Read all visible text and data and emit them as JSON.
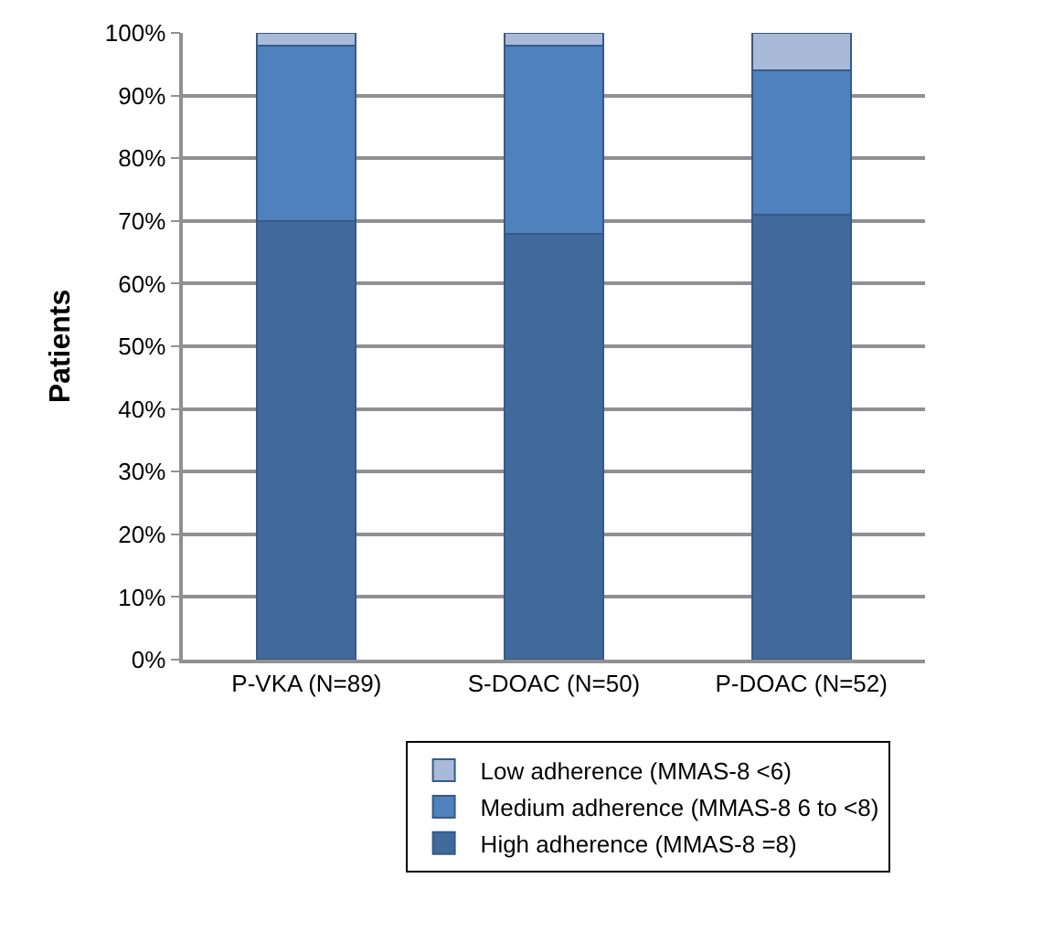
{
  "chart_data": {
    "type": "bar",
    "stacked": true,
    "ylabel": "Patients",
    "categories": [
      "P-VKA (N=89)",
      "S-DOAC (N=50)",
      "P-DOAC (N=52)"
    ],
    "series": [
      {
        "name": "High adherence (MMAS-8 =8)",
        "color": "#41699b",
        "values": [
          70,
          68,
          71
        ]
      },
      {
        "name": "Medium adherence (MMAS-8 6 to <8)",
        "color": "#4f81bd",
        "values": [
          28,
          30,
          23
        ]
      },
      {
        "name": "Low adherence (MMAS-8 <6)",
        "color": "#a9b9d8",
        "values": [
          2,
          2,
          6
        ]
      }
    ],
    "ylim": [
      0,
      100
    ],
    "yticks": [
      {
        "value": 0,
        "label": "0%"
      },
      {
        "value": 10,
        "label": "10%"
      },
      {
        "value": 20,
        "label": "20%"
      },
      {
        "value": 30,
        "label": "30%"
      },
      {
        "value": 40,
        "label": "40%"
      },
      {
        "value": 50,
        "label": "50%"
      },
      {
        "value": 60,
        "label": "60%"
      },
      {
        "value": 70,
        "label": "70%"
      },
      {
        "value": 80,
        "label": "80%"
      },
      {
        "value": 90,
        "label": "90%"
      },
      {
        "value": 100,
        "label": "100%"
      }
    ],
    "grid": "y",
    "legend": "bottom"
  }
}
